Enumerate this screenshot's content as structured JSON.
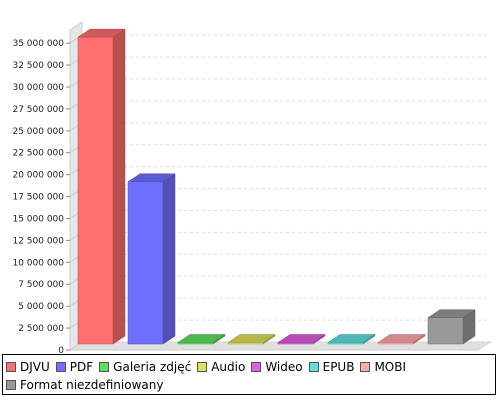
{
  "chart_data": {
    "type": "bar",
    "style": "3d",
    "categories": [
      "DJVU",
      "PDF",
      "Galeria zdjęć",
      "Audio",
      "Wideo",
      "EPUB",
      "MOBI",
      "Format niezdefiniowany"
    ],
    "values": [
      35000000,
      18500000,
      150000,
      100000,
      100000,
      80000,
      60000,
      3000000
    ],
    "colors": [
      "#ff6f6f",
      "#6f6fff",
      "#5fdf5f",
      "#dfdf5f",
      "#df5fdf",
      "#5fdfdf",
      "#ffaaaa",
      "#999999"
    ],
    "ylim": [
      0,
      36500000
    ],
    "yticks": [
      0,
      2500000,
      5000000,
      7500000,
      10000000,
      12500000,
      15000000,
      17500000,
      20000000,
      22500000,
      25000000,
      27500000,
      30000000,
      32500000,
      35000000
    ],
    "ytick_labels": [
      "0",
      "2 500 000",
      "5 000 000",
      "7 500 000",
      "10 000 000",
      "12 500 000",
      "15 000 000",
      "17 500 000",
      "20 000 000",
      "22 500 000",
      "25 000 000",
      "27 500 000",
      "30 000 000",
      "32 500 000",
      "35 000 000"
    ],
    "grid": true,
    "legend_position": "bottom",
    "legend": [
      "DJVU",
      "PDF",
      "Galeria zdjęć",
      "Audio",
      "Wideo",
      "EPUB",
      "MOBI",
      "Format niezdefiniowany"
    ]
  }
}
